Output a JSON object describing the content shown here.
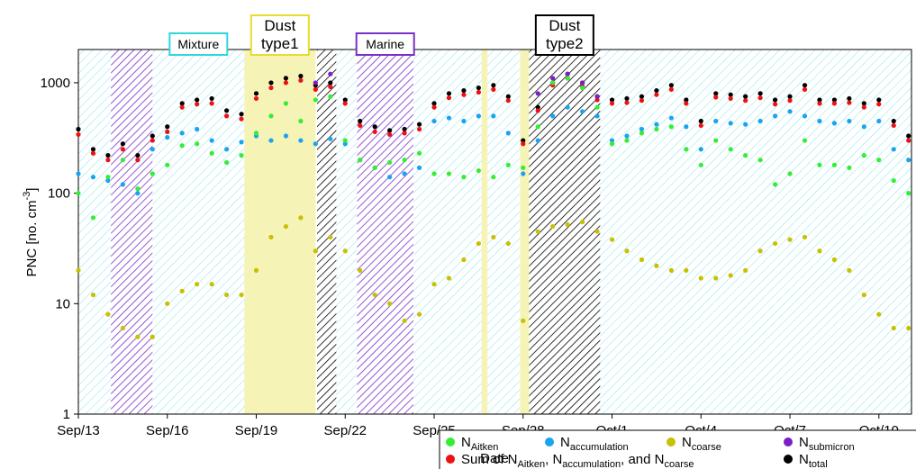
{
  "chart_data": {
    "type": "scatter",
    "log_y": true,
    "xlabel": "Date",
    "ylabel": [
      "PNC [no. cm",
      "-3",
      "]"
    ],
    "xlim": [
      0,
      28.1
    ],
    "ylim": [
      1,
      2000
    ],
    "xticks": [
      {
        "value": 0,
        "label": "Sep/13"
      },
      {
        "value": 3,
        "label": "Sep/16"
      },
      {
        "value": 6,
        "label": "Sep/19"
      },
      {
        "value": 9,
        "label": "Sep/22"
      },
      {
        "value": 12,
        "label": "Sep/25"
      },
      {
        "value": 15,
        "label": "Sep/28"
      },
      {
        "value": 18,
        "label": "Oct/1"
      },
      {
        "value": 21,
        "label": "Oct/4"
      },
      {
        "value": 24,
        "label": "Oct/7"
      },
      {
        "value": 27,
        "label": "Oct/10"
      }
    ],
    "yticks": [
      1,
      10,
      100,
      1000
    ],
    "regions": [
      {
        "label": [
          "Mixture"
        ],
        "color": "#2fd6e0",
        "fill": "hatch",
        "spans": [
          [
            2.5,
            5.6
          ],
          [
            0,
            1.1
          ],
          [
            8.7,
            9.4
          ],
          [
            11.3,
            13.6
          ],
          [
            13.8,
            14.9
          ],
          [
            17.6,
            28.1
          ]
        ]
      },
      {
        "label": [
          "Dust",
          "type1"
        ],
        "color": "#e4de2e",
        "fill": "solid",
        "spans": [
          [
            5.6,
            8.0
          ],
          [
            13.6,
            13.8
          ],
          [
            14.9,
            15.2
          ]
        ]
      },
      {
        "label": [
          "Marine"
        ],
        "color": "#7b2fc9",
        "fill": "hatch",
        "spans": [
          [
            9.4,
            11.3
          ],
          [
            1.1,
            2.5
          ]
        ]
      },
      {
        "label": [
          "Dust",
          "type2"
        ],
        "color": "#000000",
        "fill": "hatch",
        "spans": [
          [
            15.2,
            17.6
          ],
          [
            8.05,
            8.7
          ]
        ]
      }
    ],
    "x": [
      0,
      0.5,
      1,
      1.5,
      2,
      2.5,
      3,
      3.5,
      4,
      4.5,
      5,
      5.5,
      6,
      6.5,
      7,
      7.5,
      8,
      8.5,
      9,
      9.5,
      10,
      10.5,
      11,
      11.5,
      12,
      12.5,
      13,
      13.5,
      14,
      14.5,
      15,
      15.5,
      16,
      16.5,
      17,
      17.5,
      18,
      18.5,
      19,
      19.5,
      20,
      20.5,
      21,
      21.5,
      22,
      22.5,
      23,
      23.5,
      24,
      24.5,
      25,
      25.5,
      26,
      26.5,
      27,
      27.5,
      28
    ],
    "series": [
      {
        "name": [
          "N",
          "Aitken"
        ],
        "color": "#33ee33",
        "values": [
          100,
          60,
          140,
          200,
          110,
          150,
          180,
          270,
          280,
          230,
          190,
          220,
          350,
          500,
          650,
          450,
          700,
          750,
          300,
          200,
          170,
          190,
          200,
          230,
          150,
          150,
          140,
          160,
          140,
          180,
          170,
          400,
          1000,
          1100,
          900,
          600,
          280,
          300,
          350,
          380,
          400,
          250,
          180,
          300,
          250,
          220,
          200,
          120,
          150,
          300,
          180,
          180,
          170,
          220,
          200,
          130,
          100
        ]
      },
      {
        "name": [
          "N",
          "accumulation"
        ],
        "color": "#1aa3f0",
        "values": [
          150,
          140,
          130,
          120,
          100,
          250,
          320,
          350,
          380,
          300,
          250,
          290,
          330,
          300,
          330,
          300,
          280,
          310,
          280,
          200,
          170,
          140,
          150,
          170,
          450,
          480,
          450,
          500,
          500,
          350,
          150,
          300,
          500,
          600,
          550,
          500,
          300,
          330,
          380,
          420,
          480,
          400,
          250,
          450,
          430,
          420,
          450,
          500,
          550,
          500,
          450,
          430,
          450,
          400,
          450,
          250,
          200
        ]
      },
      {
        "name": [
          "N",
          "coarse"
        ],
        "color": "#c8c000",
        "values": [
          20,
          12,
          8,
          6,
          5,
          5,
          10,
          13,
          15,
          15,
          12,
          12,
          20,
          40,
          50,
          60,
          30,
          40,
          30,
          20,
          12,
          10,
          7,
          8,
          15,
          17,
          25,
          35,
          40,
          35,
          7,
          45,
          50,
          52,
          55,
          45,
          38,
          30,
          25,
          22,
          20,
          20,
          17,
          17,
          18,
          20,
          30,
          35,
          38,
          40,
          30,
          25,
          20,
          12,
          8,
          6,
          6
        ]
      },
      {
        "name": [
          "N",
          "submicron"
        ],
        "color": "#7a1fc8",
        "values": [
          null,
          null,
          null,
          null,
          null,
          null,
          null,
          null,
          null,
          null,
          null,
          null,
          null,
          null,
          null,
          null,
          1000,
          1200,
          null,
          null,
          null,
          null,
          null,
          null,
          null,
          null,
          null,
          null,
          null,
          null,
          null,
          800,
          1100,
          1200,
          1000,
          750,
          null,
          null,
          null,
          null,
          null,
          null,
          null,
          null,
          null,
          null,
          null,
          null,
          null,
          null,
          null,
          null,
          null,
          null,
          null,
          null,
          null
        ]
      },
      {
        "name": [
          "Sum of N",
          "Aitken",
          ", N",
          "accumulation",
          ", and N",
          "coarse"
        ],
        "color": "#ee1111",
        "values": [
          340,
          230,
          200,
          250,
          200,
          300,
          360,
          600,
          640,
          650,
          500,
          470,
          720,
          900,
          1000,
          1050,
          870,
          920,
          650,
          410,
          360,
          340,
          350,
          380,
          600,
          730,
          780,
          820,
          870,
          690,
          280,
          560,
          950,
          1100,
          930,
          700,
          650,
          660,
          690,
          780,
          870,
          650,
          410,
          740,
          720,
          690,
          730,
          640,
          690,
          870,
          650,
          650,
          660,
          600,
          640,
          410,
          300
        ]
      },
      {
        "name": [
          "N",
          "total"
        ],
        "color": "#000000",
        "values": [
          380,
          250,
          220,
          280,
          220,
          330,
          400,
          650,
          700,
          720,
          560,
          520,
          800,
          1000,
          1100,
          1150,
          950,
          1000,
          700,
          450,
          400,
          370,
          380,
          420,
          650,
          800,
          850,
          900,
          950,
          750,
          300,
          600,
          1000,
          1200,
          1000,
          750,
          700,
          720,
          750,
          850,
          950,
          700,
          450,
          800,
          780,
          750,
          800,
          700,
          750,
          950,
          700,
          700,
          720,
          650,
          700,
          450,
          330
        ]
      }
    ]
  }
}
